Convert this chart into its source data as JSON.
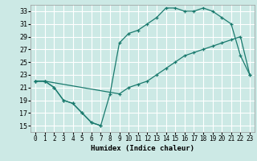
{
  "xlabel": "Humidex (Indice chaleur)",
  "bg_color": "#cce9e5",
  "line_color": "#1a7a6e",
  "grid_color": "#ffffff",
  "xlim": [
    -0.5,
    23.5
  ],
  "ylim": [
    14.0,
    34.0
  ],
  "yticks": [
    15,
    17,
    19,
    21,
    23,
    25,
    27,
    29,
    31,
    33
  ],
  "xticks": [
    0,
    1,
    2,
    3,
    4,
    5,
    6,
    7,
    8,
    9,
    10,
    11,
    12,
    13,
    14,
    15,
    16,
    17,
    18,
    19,
    20,
    21,
    22,
    23
  ],
  "line1_x": [
    0,
    1,
    2,
    3,
    4,
    5,
    6,
    7
  ],
  "line1_y": [
    22,
    22,
    21,
    19,
    18.5,
    17,
    15.5,
    15
  ],
  "line2_x": [
    0,
    1,
    2,
    3,
    4,
    5,
    6,
    7,
    8,
    9,
    10,
    11,
    12,
    13,
    14,
    15,
    16,
    17,
    18,
    19,
    20,
    21,
    22,
    23
  ],
  "line2_y": [
    22,
    22,
    21,
    19,
    18.5,
    17,
    15.5,
    15,
    20,
    28,
    29.5,
    30,
    31,
    32,
    33.5,
    33.5,
    33,
    33,
    33.5,
    33,
    32,
    31,
    26,
    23
  ],
  "line3_x": [
    0,
    1,
    9,
    10,
    11,
    12,
    13,
    14,
    15,
    16,
    17,
    18,
    19,
    20,
    21,
    22,
    23
  ],
  "line3_y": [
    22,
    22,
    20,
    21,
    21.5,
    22,
    23,
    24,
    25,
    26,
    26.5,
    27,
    27.5,
    28,
    28.5,
    29,
    23
  ]
}
